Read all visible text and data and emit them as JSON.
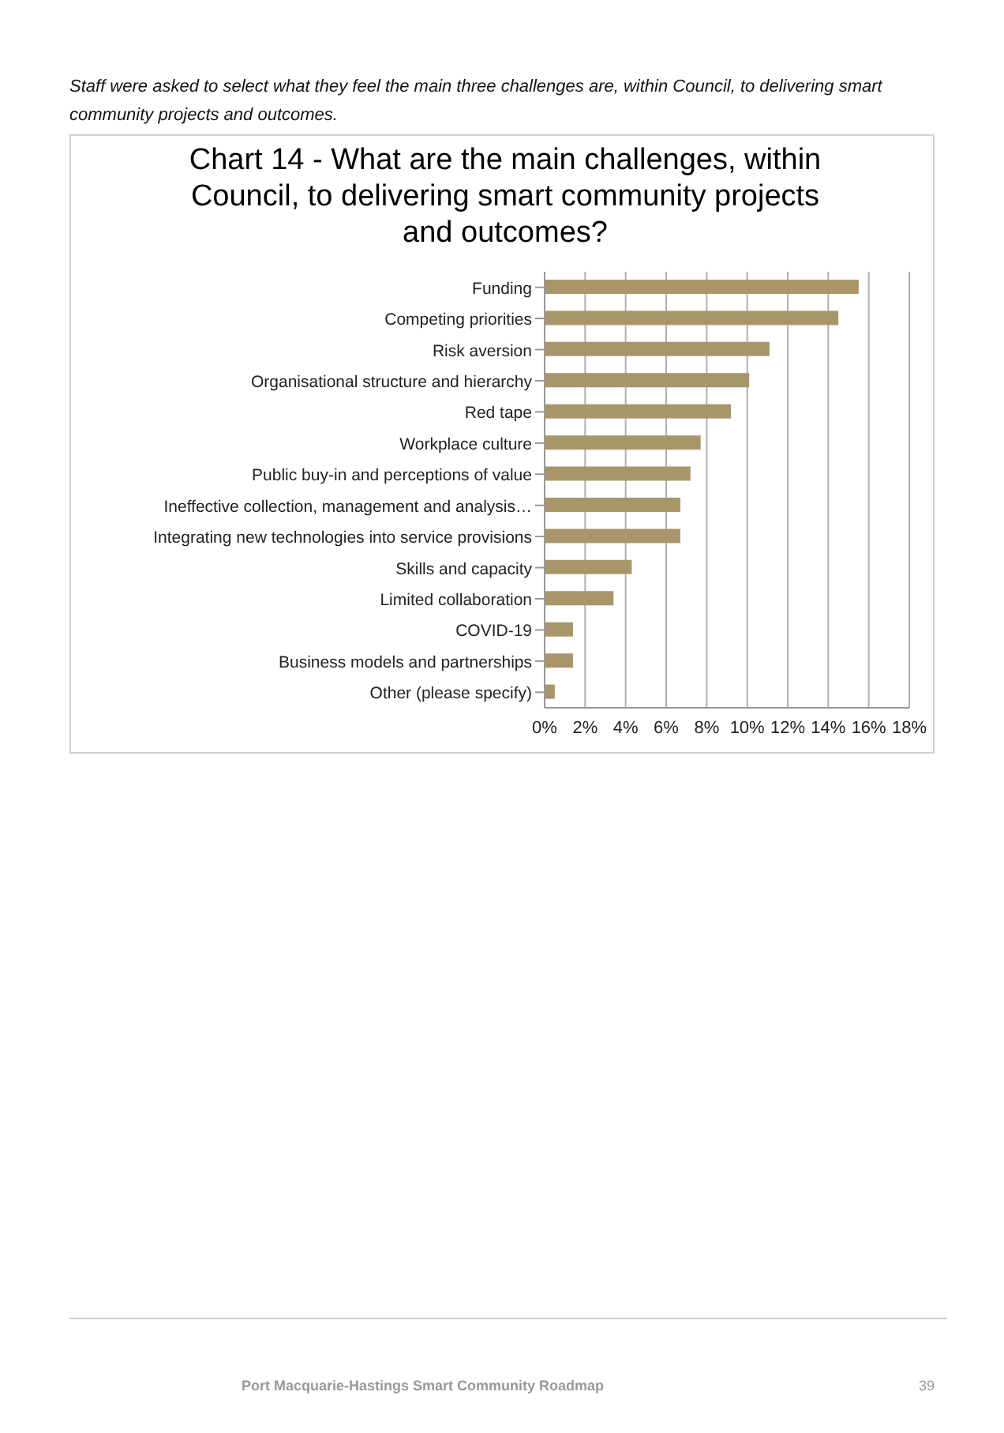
{
  "chart_data": {
    "type": "bar",
    "orientation": "horizontal",
    "title": "Chart 14 - What are the main challenges, within Council, to delivering smart community projects and outcomes?",
    "categories": [
      "Funding",
      "Competing priorities",
      "Risk aversion",
      "Organisational structure and hierarchy",
      "Red tape",
      "Workplace culture",
      "Public buy-in and perceptions of value",
      "Ineffective collection, management and analysis…",
      "Integrating new technologies into service provisions",
      "Skills and capacity",
      "Limited collaboration",
      "COVID-19",
      "Business models and partnerships",
      "Other (please specify)"
    ],
    "values": [
      15.5,
      14.5,
      11.1,
      10.1,
      9.2,
      7.7,
      7.2,
      6.7,
      6.7,
      4.3,
      3.4,
      1.4,
      1.4,
      0.5
    ],
    "color": "#a8956a",
    "xlim": [
      0,
      18
    ],
    "xticks": [
      {
        "value": 0,
        "label": "0%"
      },
      {
        "value": 2,
        "label": "2%"
      },
      {
        "value": 4,
        "label": "4%"
      },
      {
        "value": 6,
        "label": "6%"
      },
      {
        "value": 8,
        "label": "8%"
      },
      {
        "value": 10,
        "label": "10%"
      },
      {
        "value": 12,
        "label": "12%"
      },
      {
        "value": 14,
        "label": "14%"
      },
      {
        "value": 16,
        "label": "16%"
      },
      {
        "value": 18,
        "label": "18%"
      }
    ],
    "grid": "x",
    "annotations": [
      "Staff were asked to select what they feel the main three challenges are, within Council, to delivering smart community projects and outcomes.",
      "Port Macquarie-Hastings Smart Community Roadmap",
      "39"
    ]
  }
}
